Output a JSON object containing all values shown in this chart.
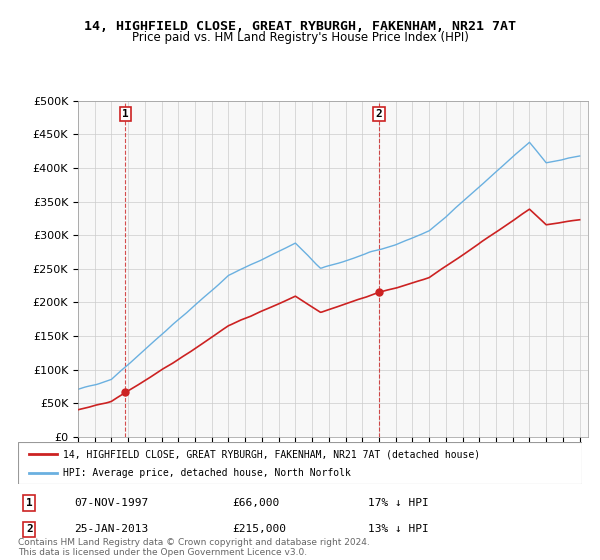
{
  "title1": "14, HIGHFIELD CLOSE, GREAT RYBURGH, FAKENHAM, NR21 7AT",
  "title2": "Price paid vs. HM Land Registry's House Price Index (HPI)",
  "sale1_date": "07-NOV-1997",
  "sale1_price": 66000,
  "sale1_label": "17% ↓ HPI",
  "sale2_date": "25-JAN-2013",
  "sale2_price": 215000,
  "sale2_label": "13% ↓ HPI",
  "legend1": "14, HIGHFIELD CLOSE, GREAT RYBURGH, FAKENHAM, NR21 7AT (detached house)",
  "legend2": "HPI: Average price, detached house, North Norfolk",
  "footer": "Contains HM Land Registry data © Crown copyright and database right 2024.\nThis data is licensed under the Open Government Licence v3.0.",
  "hpi_color": "#6ab0e0",
  "price_color": "#cc2222",
  "marker_color_red": "#cc2222",
  "marker_border": "#cc2222",
  "ylim": [
    0,
    500000
  ],
  "background_color": "#ffffff",
  "grid_color": "#cccccc"
}
